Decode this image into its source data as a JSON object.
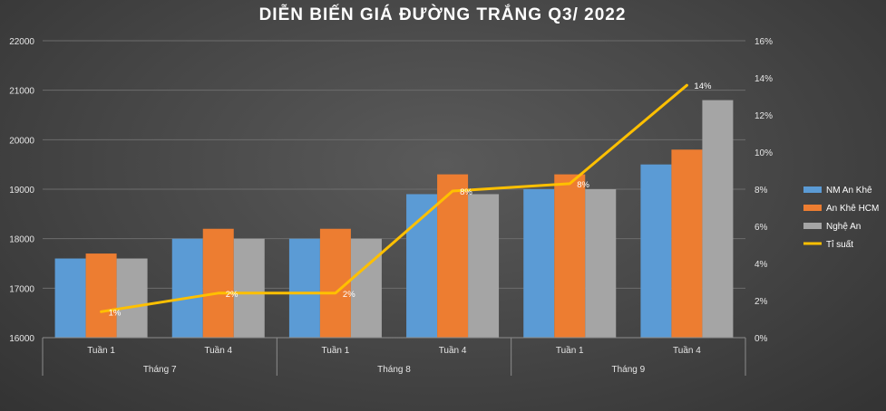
{
  "chart_data": {
    "type": "bar",
    "title": "DIỄN BIẾN GIÁ ĐƯỜNG TRẮNG Q3/ 2022",
    "categories": [
      "Tuần 1",
      "Tuần 4",
      "Tuần 1",
      "Tuần 4",
      "Tuần 1",
      "Tuần 4"
    ],
    "groups": [
      {
        "label": "Tháng 7",
        "span": 2
      },
      {
        "label": "Tháng 8",
        "span": 2
      },
      {
        "label": "Tháng 9",
        "span": 2
      }
    ],
    "series": [
      {
        "name": "NM An Khê",
        "color": "#5b9bd5",
        "values": [
          17600,
          18000,
          18000,
          18900,
          19000,
          19500
        ]
      },
      {
        "name": "An Khê HCM",
        "color": "#ed7d31",
        "values": [
          17700,
          18200,
          18200,
          19300,
          19300,
          19800
        ]
      },
      {
        "name": "Nghệ An",
        "color": "#a5a5a5",
        "values": [
          17600,
          18000,
          18000,
          18900,
          19000,
          20800
        ]
      }
    ],
    "line_series": {
      "name": "Tỉ suất",
      "color": "#ffc000",
      "values": [
        1.4,
        2.4,
        2.4,
        7.9,
        8.3,
        13.6
      ],
      "labels": [
        "1%",
        "2%",
        "2%",
        "8%",
        "8%",
        "14%"
      ]
    },
    "y_left": {
      "min": 16000,
      "max": 22000,
      "step": 1000,
      "ticks": [
        "16000",
        "17000",
        "18000",
        "19000",
        "20000",
        "21000",
        "22000"
      ]
    },
    "y_right": {
      "min": 0,
      "max": 16,
      "step": 2,
      "ticks": [
        "0%",
        "2%",
        "4%",
        "6%",
        "8%",
        "10%",
        "12%",
        "14%",
        "16%"
      ]
    },
    "grid": true,
    "legend_position": "right"
  }
}
